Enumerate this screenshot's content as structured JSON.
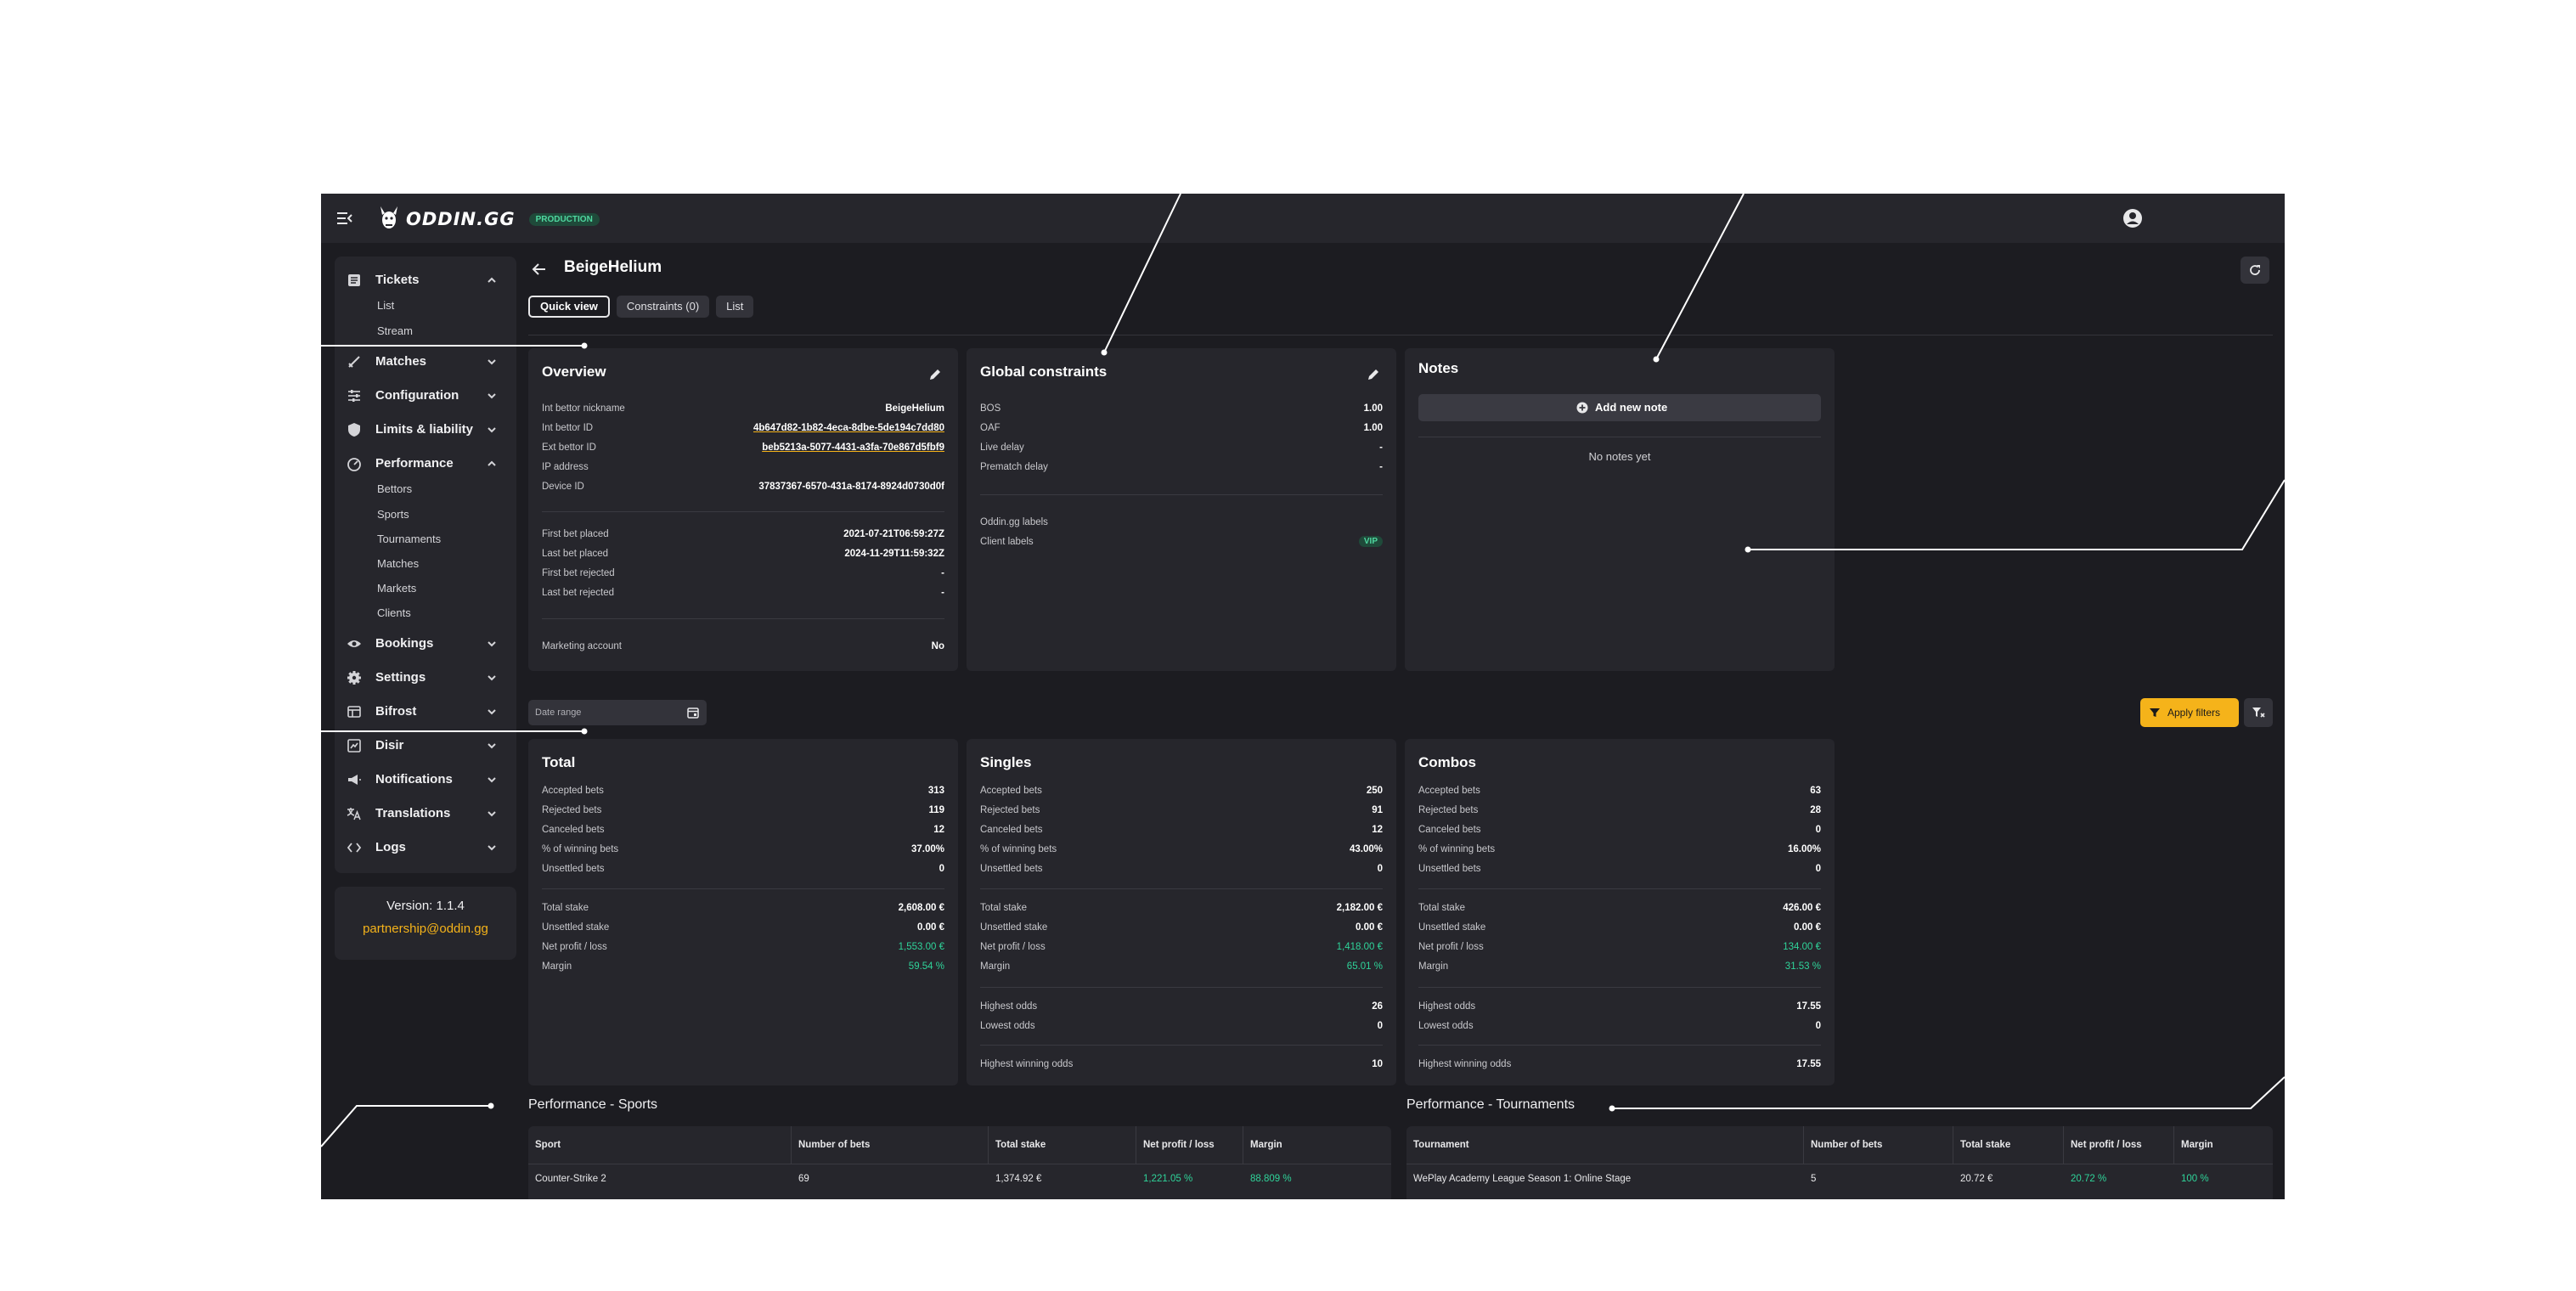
{
  "brand": {
    "logo_text": "ODDIN.GG",
    "env_badge": "PRODUCTION"
  },
  "header": {
    "title": "BeigeHelium"
  },
  "tabs": [
    {
      "label": "Quick view",
      "active": true
    },
    {
      "label": "Constraints (0)",
      "active": false
    },
    {
      "label": "List",
      "active": false
    }
  ],
  "sidebar": {
    "items": [
      {
        "label": "Tickets",
        "icon": "ticket-icon",
        "expanded": true,
        "children": [
          "List",
          "Stream"
        ]
      },
      {
        "label": "Matches",
        "icon": "matches-icon",
        "expanded": false
      },
      {
        "label": "Configuration",
        "icon": "sliders-icon",
        "expanded": false
      },
      {
        "label": "Limits & liability",
        "icon": "shield-icon",
        "expanded": false
      },
      {
        "label": "Performance",
        "icon": "gauge-icon",
        "expanded": true,
        "children": [
          "Bettors",
          "Sports",
          "Tournaments",
          "Matches",
          "Markets",
          "Clients"
        ]
      },
      {
        "label": "Bookings",
        "icon": "eye-icon",
        "expanded": false
      },
      {
        "label": "Settings",
        "icon": "gear-icon",
        "expanded": false
      },
      {
        "label": "Bifrost",
        "icon": "table-icon",
        "expanded": false
      },
      {
        "label": "Disir",
        "icon": "chart-box-icon",
        "expanded": false
      },
      {
        "label": "Notifications",
        "icon": "megaphone-icon",
        "expanded": false
      },
      {
        "label": "Translations",
        "icon": "translate-icon",
        "expanded": false
      },
      {
        "label": "Logs",
        "icon": "code-icon",
        "expanded": false
      }
    ],
    "version": "Version: 1.1.4",
    "email": "partnership@oddin.gg"
  },
  "overview": {
    "title": "Overview",
    "rows1": [
      {
        "k": "Int bettor nickname",
        "v": "BeigeHelium",
        "link": false
      },
      {
        "k": "Int bettor ID",
        "v": "4b647d82-1b82-4eca-8dbe-5de194c7dd80",
        "link": true
      },
      {
        "k": "Ext bettor ID",
        "v": "beb5213a-5077-4431-a3fa-70e867d5fbf9",
        "link": true
      },
      {
        "k": "IP address",
        "v": "",
        "link": false
      },
      {
        "k": "Device ID",
        "v": "37837367-6570-431a-8174-8924d0730d0f",
        "link": false
      }
    ],
    "rows2": [
      {
        "k": "First bet placed",
        "v": "2021-07-21T06:59:27Z"
      },
      {
        "k": "Last bet placed",
        "v": "2024-11-29T11:59:32Z"
      },
      {
        "k": "First bet rejected",
        "v": "-"
      },
      {
        "k": "Last bet rejected",
        "v": "-"
      }
    ],
    "rows3": [
      {
        "k": "Marketing account",
        "v": "No"
      }
    ]
  },
  "constraints": {
    "title": "Global constraints",
    "rows1": [
      {
        "k": "BOS",
        "v": "1.00"
      },
      {
        "k": "OAF",
        "v": "1.00"
      },
      {
        "k": "Live delay",
        "v": "-"
      },
      {
        "k": "Prematch delay",
        "v": "-"
      }
    ],
    "oddin_labels": "Oddin.gg labels",
    "client_labels": "Client labels",
    "client_badge": "VIP"
  },
  "notes": {
    "title": "Notes",
    "add_label": "Add new note",
    "empty": "No notes yet"
  },
  "filters": {
    "date_placeholder": "Date range",
    "apply_label": "Apply filters"
  },
  "stats": [
    {
      "title": "Total",
      "a": [
        {
          "k": "Accepted bets",
          "v": "313"
        },
        {
          "k": "Rejected bets",
          "v": "119"
        },
        {
          "k": "Canceled bets",
          "v": "12"
        },
        {
          "k": "% of winning bets",
          "v": "37.00%"
        },
        {
          "k": "Unsettled bets",
          "v": "0"
        }
      ],
      "b": [
        {
          "k": "Total stake",
          "v": "2,608.00 €",
          "green": false
        },
        {
          "k": "Unsettled stake",
          "v": "0.00 €",
          "green": false
        },
        {
          "k": "Net profit / loss",
          "v": "1,553.00 €",
          "green": true
        },
        {
          "k": "Margin",
          "v": "59.54 %",
          "green": true
        }
      ]
    },
    {
      "title": "Singles",
      "a": [
        {
          "k": "Accepted bets",
          "v": "250"
        },
        {
          "k": "Rejected bets",
          "v": "91"
        },
        {
          "k": "Canceled bets",
          "v": "12"
        },
        {
          "k": "% of winning bets",
          "v": "43.00%"
        },
        {
          "k": "Unsettled bets",
          "v": "0"
        }
      ],
      "b": [
        {
          "k": "Total stake",
          "v": "2,182.00 €",
          "green": false
        },
        {
          "k": "Unsettled stake",
          "v": "0.00 €",
          "green": false
        },
        {
          "k": "Net profit / loss",
          "v": "1,418.00 €",
          "green": true
        },
        {
          "k": "Margin",
          "v": "65.01 %",
          "green": true
        }
      ],
      "c": [
        {
          "k": "Highest odds",
          "v": "26"
        },
        {
          "k": "Lowest odds",
          "v": "0"
        }
      ],
      "d": [
        {
          "k": "Highest winning odds",
          "v": "10"
        }
      ]
    },
    {
      "title": "Combos",
      "a": [
        {
          "k": "Accepted bets",
          "v": "63"
        },
        {
          "k": "Rejected bets",
          "v": "28"
        },
        {
          "k": "Canceled bets",
          "v": "0"
        },
        {
          "k": "% of winning bets",
          "v": "16.00%"
        },
        {
          "k": "Unsettled bets",
          "v": "0"
        }
      ],
      "b": [
        {
          "k": "Total stake",
          "v": "426.00 €",
          "green": false
        },
        {
          "k": "Unsettled stake",
          "v": "0.00 €",
          "green": false
        },
        {
          "k": "Net profit / loss",
          "v": "134.00 €",
          "green": true
        },
        {
          "k": "Margin",
          "v": "31.53 %",
          "green": true
        }
      ],
      "c": [
        {
          "k": "Highest odds",
          "v": "17.55"
        },
        {
          "k": "Lowest odds",
          "v": "0"
        }
      ],
      "d": [
        {
          "k": "Highest winning odds",
          "v": "17.55"
        }
      ]
    }
  ],
  "perf_sports": {
    "title": "Performance - Sports",
    "headers": [
      "Sport",
      "Number of bets",
      "Total stake",
      "Net profit / loss",
      "Margin"
    ],
    "rows": [
      [
        "Counter-Strike 2",
        "69",
        "1,374.92 €",
        "1,221.05 %",
        "88.809 %"
      ]
    ]
  },
  "perf_tournaments": {
    "title": "Performance - Tournaments",
    "headers": [
      "Tournament",
      "Number of bets",
      "Total stake",
      "Net profit / loss",
      "Margin"
    ],
    "rows": [
      [
        "WePlay Academy League Season 1: Online Stage",
        "5",
        "20.72 €",
        "20.72 %",
        "100 %"
      ]
    ]
  },
  "colors": {
    "accent": "#f5b31a",
    "positive": "#2fd49a",
    "background": "#1c1c21",
    "card": "#26262c"
  }
}
